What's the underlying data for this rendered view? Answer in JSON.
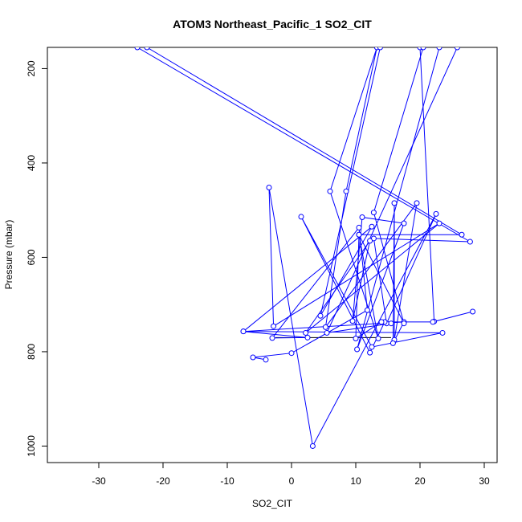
{
  "chart_data": {
    "type": "scatter",
    "title": "ATOM3 Northeast_Pacific_1 SO2_CIT",
    "xlabel": "SO2_CIT",
    "ylabel": "Pressure (mbar)",
    "xlim": [
      -38,
      32
    ],
    "ylim": [
      1035,
      155
    ],
    "y_reversed": true,
    "grid": false,
    "xticks": [
      -30,
      -20,
      -10,
      0,
      10,
      20,
      30
    ],
    "yticks": [
      200,
      400,
      600,
      800,
      1000
    ],
    "series": [
      {
        "color": "#0000ff",
        "marker": "open-circle",
        "path": [
          [
            -24,
            155
          ],
          [
            27.8,
            567
          ],
          [
            12.8,
            560
          ],
          [
            14.8,
            740
          ],
          [
            22.5,
            508
          ],
          [
            3.3,
            1000
          ],
          [
            -3.5,
            452
          ],
          [
            -2.8,
            746
          ],
          [
            23,
            528
          ],
          [
            2.2,
            760
          ],
          [
            12.2,
            565
          ],
          [
            9.5,
            735
          ],
          [
            11,
            515
          ],
          [
            17.5,
            528
          ],
          [
            10.2,
            795
          ],
          [
            23,
            155
          ]
        ]
      },
      {
        "color": "#0000ff",
        "marker": "open-circle",
        "path": [
          [
            -22.5,
            155
          ],
          [
            26.5,
            552
          ],
          [
            10.5,
            552
          ],
          [
            13.5,
            772
          ],
          [
            6,
            460
          ],
          [
            13.3,
            155
          ],
          [
            8.5,
            460
          ],
          [
            5.3,
            748
          ],
          [
            19.5,
            485
          ],
          [
            16,
            775
          ],
          [
            16,
            485
          ],
          [
            15.8,
            782
          ],
          [
            17.5,
            737
          ],
          [
            -7.5,
            757
          ],
          [
            12.5,
            535
          ],
          [
            4.5,
            724
          ],
          [
            13.8,
            155
          ]
        ]
      },
      {
        "color": "#0000ff",
        "marker": "open-circle",
        "path": [
          [
            20,
            155
          ],
          [
            22.2,
            736
          ],
          [
            28.2,
            715
          ],
          [
            22,
            737
          ],
          [
            14.5,
            737
          ],
          [
            12.2,
            802
          ],
          [
            1.5,
            514
          ],
          [
            12.5,
            790
          ],
          [
            23.5,
            760
          ],
          [
            -7.5,
            757
          ],
          [
            2.5,
            770
          ],
          [
            -3,
            771
          ],
          [
            10.5,
            537
          ],
          [
            11.8,
            712
          ],
          [
            0,
            803
          ],
          [
            -6,
            812
          ],
          [
            -4,
            817
          ]
        ]
      },
      {
        "color": "#0000ff",
        "marker": "open-circle",
        "path": [
          [
            25.8,
            155
          ],
          [
            5.5,
            760
          ],
          [
            15.5,
            740
          ],
          [
            14,
            737
          ],
          [
            10,
            772
          ],
          [
            10.5,
            552
          ],
          [
            17.5,
            740
          ],
          [
            12.8,
            505
          ],
          [
            20.5,
            155
          ]
        ]
      }
    ],
    "segments": [
      {
        "color": "#000000",
        "from": [
          -2.5,
          770
        ],
        "to": [
          15.5,
          770
        ]
      }
    ]
  }
}
